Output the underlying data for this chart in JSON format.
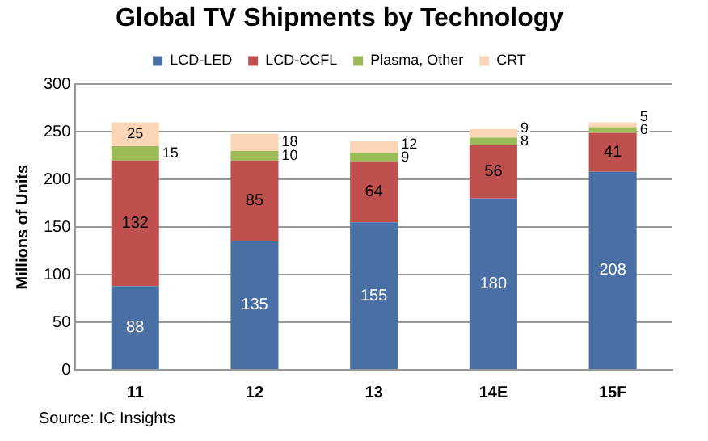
{
  "chart_data": {
    "type": "bar",
    "title": "Global TV Shipments by Technology",
    "ylabel": "Millions of Units",
    "categories": [
      "11",
      "12",
      "13",
      "14E",
      "15F"
    ],
    "stacked": true,
    "data_labels": true,
    "legend": "top",
    "grid": "y",
    "ylim": [
      0,
      300
    ],
    "yticks": [
      0,
      50,
      100,
      150,
      200,
      250,
      300
    ],
    "annotations": [
      "Source:  IC Insights"
    ],
    "series": [
      {
        "name": "LCD-LED",
        "color": "#4a6fa5",
        "values": [
          88,
          135,
          155,
          180,
          208
        ]
      },
      {
        "name": "LCD-CCFL",
        "color": "#c0504d",
        "values": [
          132,
          85,
          64,
          56,
          41
        ]
      },
      {
        "name": "Plasma, Other",
        "color": "#9bbb59",
        "values": [
          15,
          10,
          9,
          8,
          6
        ]
      },
      {
        "name": "CRT",
        "color": "#fbd5b5",
        "values": [
          25,
          18,
          12,
          9,
          5
        ]
      }
    ]
  }
}
